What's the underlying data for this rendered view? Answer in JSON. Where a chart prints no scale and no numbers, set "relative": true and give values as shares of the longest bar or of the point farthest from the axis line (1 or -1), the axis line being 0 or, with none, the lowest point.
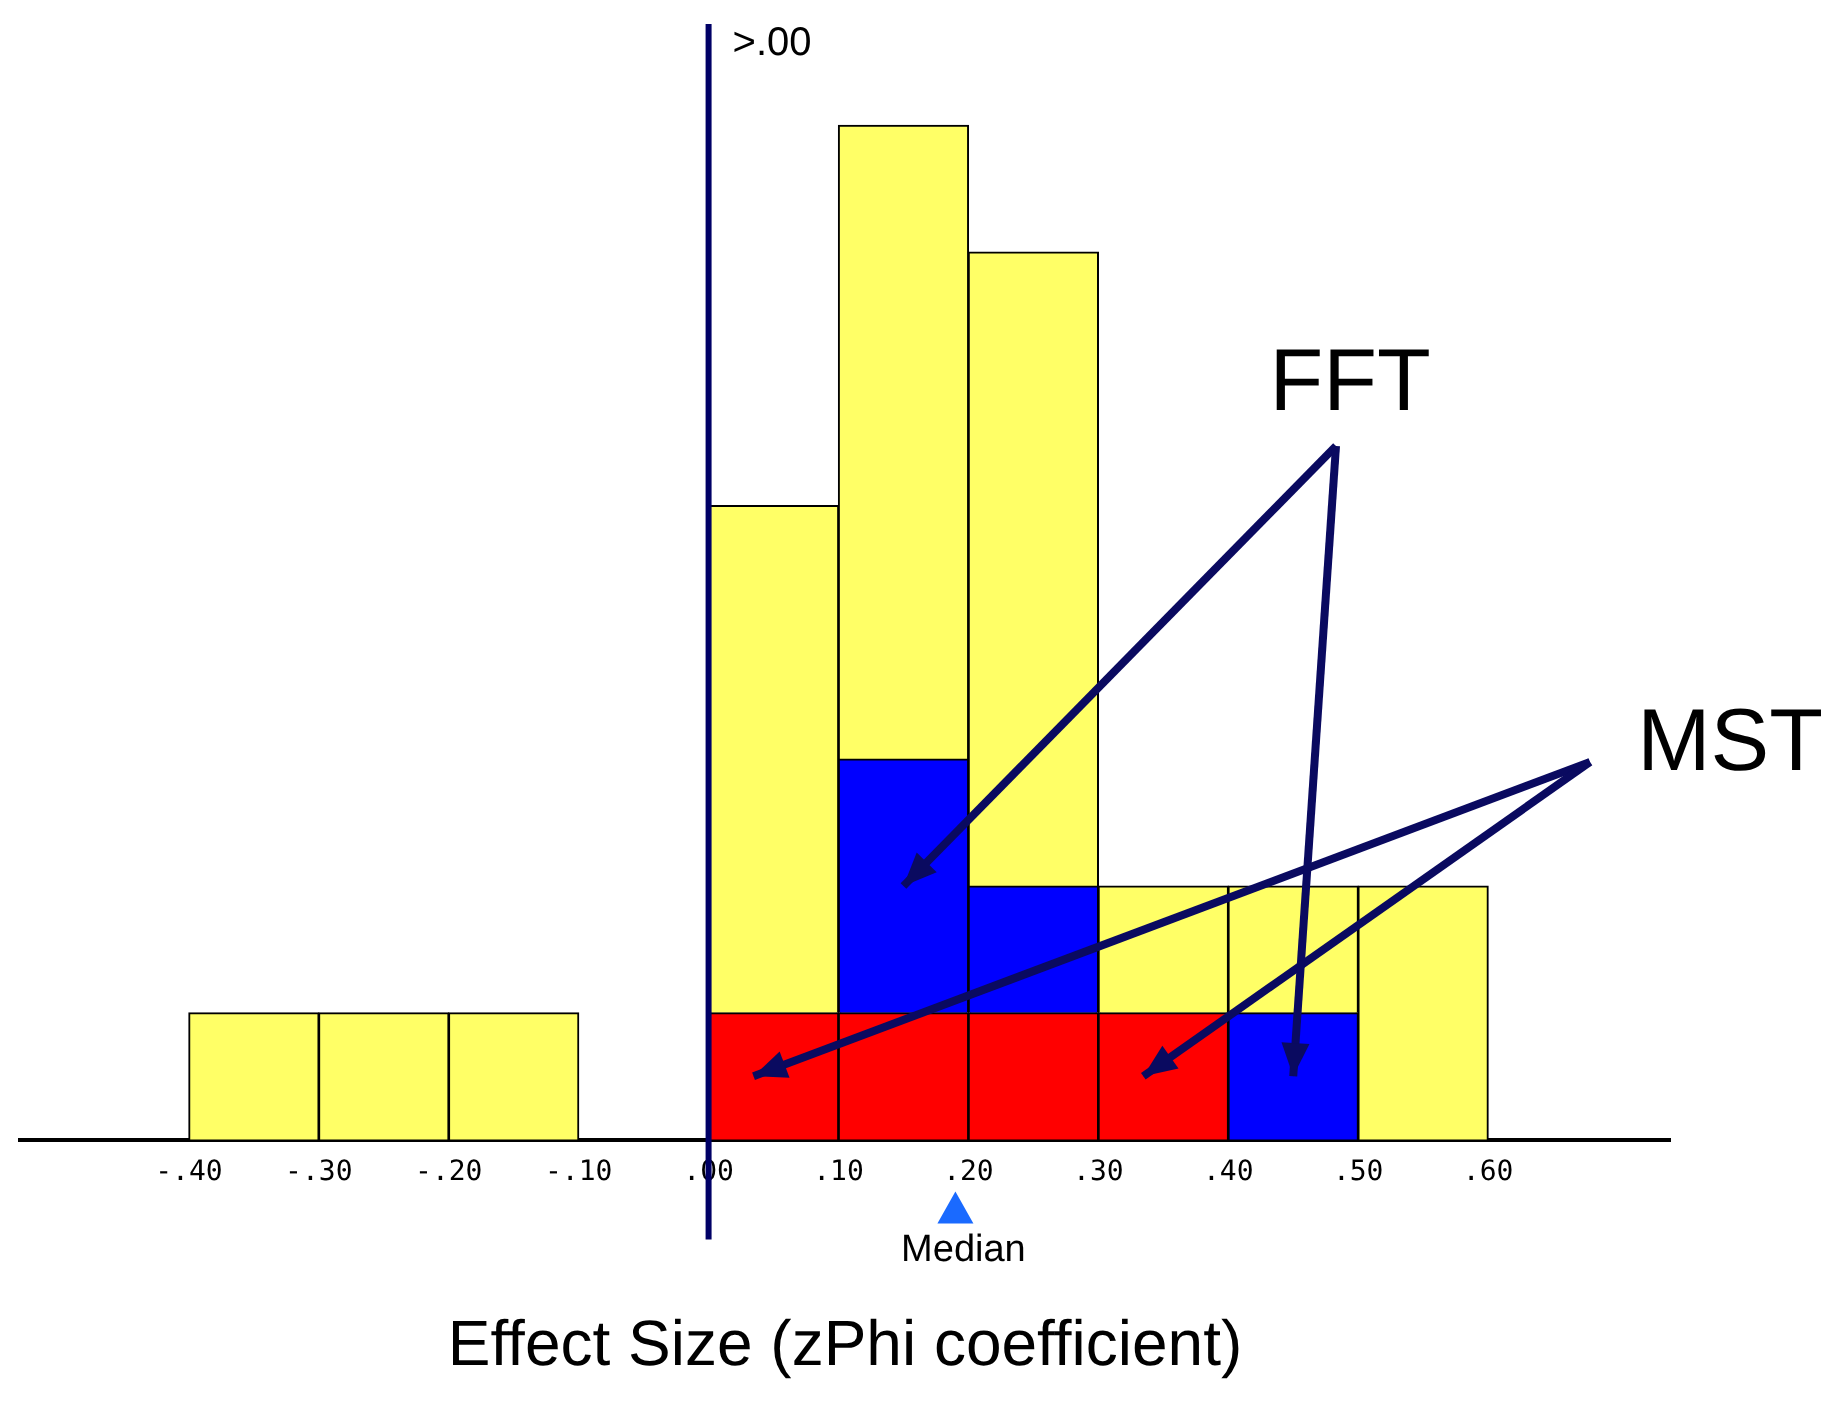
{
  "chart_data": {
    "type": "bar",
    "relative": true,
    "stacked": true,
    "xlabel": "Effect Size (zPhi coefficient)",
    "x": [
      -0.35,
      -0.25,
      -0.15,
      -0.05,
      0.05,
      0.15,
      0.25,
      0.35,
      0.45,
      0.55
    ],
    "xlim": [
      -0.53,
      0.74
    ],
    "xticks": [
      {
        "value": -0.4,
        "label": "-.40"
      },
      {
        "value": -0.3,
        "label": "-.30"
      },
      {
        "value": -0.2,
        "label": "-.20"
      },
      {
        "value": -0.1,
        "label": "-.10"
      },
      {
        "value": 0,
        "label": ".00"
      },
      {
        "value": 0.1,
        "label": ".10"
      },
      {
        "value": 0.2,
        "label": ".20"
      },
      {
        "value": 0.3,
        "label": ".30"
      },
      {
        "value": 0.4,
        "label": ".40"
      },
      {
        "value": 0.5,
        "label": ".50"
      },
      {
        "value": 0.6,
        "label": ".60"
      }
    ],
    "series": [
      {
        "name": "MST",
        "color": "#ff0000",
        "values": [
          null,
          null,
          null,
          null,
          0.125,
          0.125,
          0.125,
          0.125,
          null,
          null
        ]
      },
      {
        "name": "FFT",
        "color": "#0000ff",
        "values": [
          null,
          null,
          null,
          null,
          null,
          0.25,
          0.125,
          null,
          0.125,
          null
        ]
      },
      {
        "color": "#ffff66",
        "values": [
          0.125,
          0.125,
          0.125,
          null,
          0.5,
          0.625,
          0.625,
          0.125,
          0.125,
          0.25
        ]
      }
    ],
    "ref_lines": [
      {
        "axis": "x",
        "value": 0,
        "label": ">.00",
        "color": "#000066"
      }
    ],
    "annotations": [
      {
        "text": "Median",
        "x": 0.19,
        "y": 0
      }
    ],
    "grid": false,
    "legend": false
  }
}
